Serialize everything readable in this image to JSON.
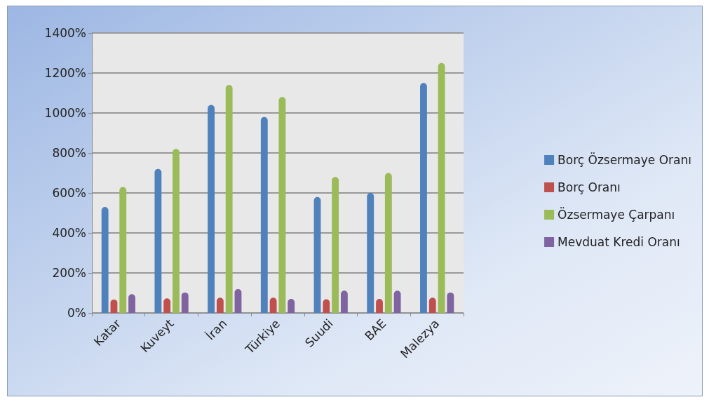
{
  "chart_data": {
    "type": "bar",
    "categories": [
      "Katar",
      "Kuveyt",
      "İran",
      "Türkiye",
      "Suudi",
      "BAE",
      "Malezya"
    ],
    "series": [
      {
        "name": "Borç Özsermaye Oranı",
        "color": "#4f81bd",
        "values": [
          530,
          720,
          1040,
          980,
          580,
          600,
          1150
        ]
      },
      {
        "name": "Borç Oranı",
        "color": "#c0504d",
        "values": [
          67,
          73,
          76,
          76,
          68,
          70,
          76
        ]
      },
      {
        "name": "Özsermaye Çarpanı",
        "color": "#9bbb59",
        "values": [
          630,
          820,
          1140,
          1080,
          680,
          700,
          1250
        ]
      },
      {
        "name": "Mevduat Kredi Oranı",
        "color": "#8064a2",
        "values": [
          94,
          102,
          119,
          70,
          111,
          111,
          102
        ]
      }
    ],
    "ylim": [
      0,
      1400
    ],
    "yticks": [
      {
        "value": 0,
        "label": "0%"
      },
      {
        "value": 200,
        "label": "200%"
      },
      {
        "value": 400,
        "label": "400%"
      },
      {
        "value": 600,
        "label": "600%"
      },
      {
        "value": 800,
        "label": "800%"
      },
      {
        "value": 1000,
        "label": "1000%"
      },
      {
        "value": 1200,
        "label": "1200%"
      },
      {
        "value": 1400,
        "label": "1400%"
      }
    ],
    "grid": "y",
    "legend": "right"
  }
}
